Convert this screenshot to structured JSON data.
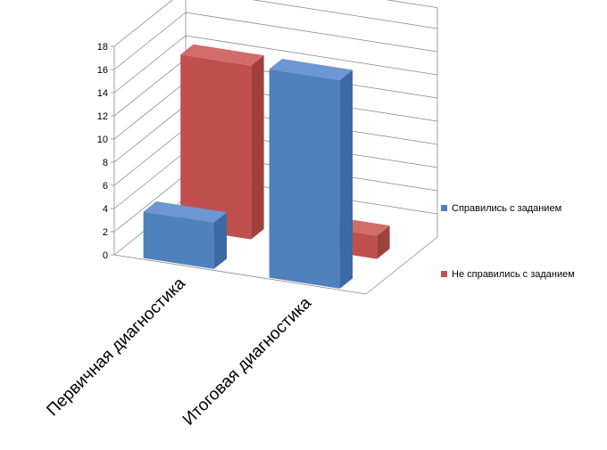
{
  "chart_data": {
    "type": "bar",
    "subtype": "3d-clustered-column",
    "categories": [
      "Первичная диагностика",
      "Итоговая диагностика"
    ],
    "series": [
      {
        "name": "Справились с заданием",
        "color": "#4F81BD",
        "values": [
          4,
          18
        ]
      },
      {
        "name": "Не справились с заданием",
        "color": "#C0504D",
        "values": [
          15,
          2
        ]
      }
    ],
    "yticks": [
      "0",
      "2",
      "4",
      "6",
      "8",
      "10",
      "12",
      "14",
      "16",
      "18"
    ],
    "ylim": [
      0,
      18
    ],
    "grid": true,
    "legend": "right"
  },
  "colors": {
    "blue_front": "#4F81BD",
    "blue_top": "#6D97D2",
    "blue_side": "#3B6AA6",
    "red_front": "#C0504D",
    "red_top": "#D06D6A",
    "red_side": "#A13F3C"
  }
}
